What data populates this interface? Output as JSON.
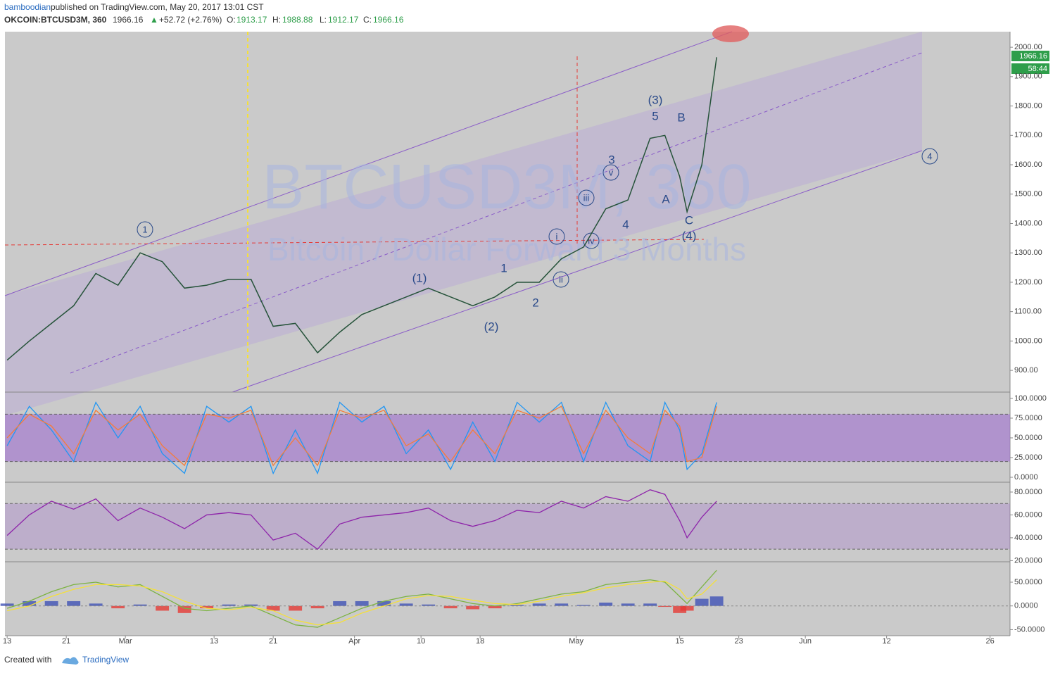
{
  "header": {
    "author": "bamboodian",
    "published": " published on TradingView.com, May 20, 2017 13:01 CST",
    "symbol": "OKCOIN:BTCUSD3M, 360",
    "last": "1966.16",
    "arrow": "▲",
    "change": "+52.72 (+2.76%)",
    "o_label": "O:",
    "open": "1913.17",
    "h_label": "H:",
    "high": "1988.88",
    "l_label": "L:",
    "low": "1912.17",
    "c_label": "C:",
    "close": "1966.16"
  },
  "price_tag": "1966.16",
  "countdown": "58:44",
  "watermark": {
    "symbol": "BTCUSD3M, 360",
    "description": "Bitcoin / Dollar Forward 3 Months"
  },
  "waves": [
    "1",
    "(1)",
    "(2)",
    "1",
    "2",
    "i",
    "ii",
    "iii",
    "iv",
    "v",
    "3",
    "4",
    "(3)",
    "5",
    "B",
    "A",
    "C",
    "(4)",
    "4"
  ],
  "footer": {
    "created": "Created with",
    "brand": "TradingView"
  },
  "chart_data": [
    {
      "type": "line",
      "xlim": [
        -0.3,
        135.7
      ],
      "xticks": [
        {
          "value": 0,
          "label": "13"
        },
        {
          "value": 8,
          "label": "21"
        },
        {
          "value": 16,
          "label": "Mar"
        },
        {
          "value": 28,
          "label": "13"
        },
        {
          "value": 36,
          "label": "21"
        },
        {
          "value": 47,
          "label": "Apr"
        },
        {
          "value": 56,
          "label": "10"
        },
        {
          "value": 64,
          "label": "18"
        },
        {
          "value": 77,
          "label": "May"
        },
        {
          "value": 91,
          "label": "15"
        },
        {
          "value": 99,
          "label": "23"
        },
        {
          "value": 108,
          "label": "Jun"
        },
        {
          "value": 119,
          "label": "12"
        },
        {
          "value": 133,
          "label": "26"
        }
      ],
      "ylim": [
        826,
        2053
      ],
      "yticks": [
        {
          "value": 900,
          "label": "900.00"
        },
        {
          "value": 1000,
          "label": "1000.00"
        },
        {
          "value": 1100,
          "label": "1100.00"
        },
        {
          "value": 1200,
          "label": "1200.00"
        },
        {
          "value": 1300,
          "label": "1300.00"
        },
        {
          "value": 1400,
          "label": "1400.00"
        },
        {
          "value": 1500,
          "label": "1500.00"
        },
        {
          "value": 1600,
          "label": "1600.00"
        },
        {
          "value": 1700,
          "label": "1700.00"
        },
        {
          "value": 1800,
          "label": "1800.00"
        },
        {
          "value": 1900,
          "label": "1900.00"
        },
        {
          "value": 2000,
          "label": "2000.00"
        }
      ],
      "x": [
        0,
        3,
        6,
        9,
        12,
        15,
        18,
        21,
        24,
        27,
        30,
        33,
        36,
        39,
        42,
        45,
        48,
        51,
        54,
        57,
        60,
        63,
        66,
        69,
        72,
        75,
        78,
        81,
        84,
        87,
        89,
        91,
        92,
        94,
        96
      ],
      "series": [
        {
          "color": "#26533a",
          "values": [
            935,
            1000,
            1060,
            1120,
            1230,
            1190,
            1300,
            1270,
            1180,
            1190,
            1210,
            1210,
            1050,
            1060,
            960,
            1030,
            1090,
            1120,
            1150,
            1180,
            1150,
            1120,
            1150,
            1200,
            1200,
            1280,
            1320,
            1450,
            1480,
            1690,
            1700,
            1560,
            1440,
            1600,
            1966
          ]
        }
      ]
    },
    {
      "type": "line",
      "xlim": [
        -0.3,
        135.7
      ],
      "ylim": [
        -6.25,
        108
      ],
      "bands": [
        20,
        80
      ],
      "yticks": [
        {
          "value": 0,
          "label": "0.0000"
        },
        {
          "value": 25,
          "label": "25.0000"
        },
        {
          "value": 50,
          "label": "50.0000"
        },
        {
          "value": 75,
          "label": "75.0000"
        },
        {
          "value": 100,
          "label": "100.0000"
        }
      ],
      "x": [
        0,
        3,
        6,
        9,
        12,
        15,
        18,
        21,
        24,
        27,
        30,
        33,
        36,
        39,
        42,
        45,
        48,
        51,
        54,
        57,
        60,
        63,
        66,
        69,
        72,
        75,
        78,
        81,
        84,
        87,
        89,
        91,
        92,
        94,
        96
      ],
      "series": [
        {
          "color": "#2196f3",
          "values": [
            40,
            90,
            60,
            20,
            95,
            50,
            90,
            30,
            5,
            90,
            70,
            90,
            5,
            60,
            5,
            95,
            70,
            90,
            30,
            60,
            10,
            70,
            20,
            95,
            70,
            95,
            20,
            95,
            40,
            20,
            95,
            60,
            10,
            30,
            95
          ]
        },
        {
          "color": "#f57c3a",
          "values": [
            50,
            80,
            65,
            30,
            85,
            60,
            80,
            40,
            15,
            80,
            75,
            85,
            15,
            50,
            15,
            85,
            75,
            85,
            40,
            55,
            20,
            60,
            30,
            85,
            75,
            90,
            30,
            85,
            50,
            30,
            85,
            65,
            20,
            25,
            90
          ]
        }
      ]
    },
    {
      "type": "line",
      "xlim": [
        -0.3,
        135.7
      ],
      "ylim": [
        19,
        88.6
      ],
      "bands": [
        30,
        70
      ],
      "yticks": [
        {
          "value": 20,
          "label": "20.0000"
        },
        {
          "value": 40,
          "label": "40.0000"
        },
        {
          "value": 60,
          "label": "60.0000"
        },
        {
          "value": 80,
          "label": "80.0000"
        }
      ],
      "x": [
        0,
        3,
        6,
        9,
        12,
        15,
        18,
        21,
        24,
        27,
        30,
        33,
        36,
        39,
        42,
        45,
        48,
        51,
        54,
        57,
        60,
        63,
        66,
        69,
        72,
        75,
        78,
        81,
        84,
        87,
        89,
        91,
        92,
        94,
        96
      ],
      "series": [
        {
          "color": "#8e24aa",
          "values": [
            42,
            60,
            72,
            65,
            74,
            55,
            66,
            58,
            48,
            60,
            62,
            60,
            38,
            44,
            30,
            52,
            58,
            60,
            62,
            66,
            55,
            50,
            55,
            64,
            62,
            72,
            66,
            76,
            72,
            82,
            78,
            55,
            40,
            58,
            72
          ]
        }
      ]
    },
    {
      "type": "macd",
      "xlim": [
        -0.3,
        135.7
      ],
      "ylim": [
        -62.7,
        93
      ],
      "yticks": [
        {
          "value": -50,
          "label": "-50.0000"
        },
        {
          "value": 0,
          "label": "0.0000"
        },
        {
          "value": 50,
          "label": "50.0000"
        }
      ],
      "x": [
        0,
        3,
        6,
        9,
        12,
        15,
        18,
        21,
        24,
        27,
        30,
        33,
        36,
        39,
        42,
        45,
        48,
        51,
        54,
        57,
        60,
        63,
        66,
        69,
        72,
        75,
        78,
        81,
        84,
        87,
        89,
        91,
        92,
        94,
        96
      ],
      "series": [
        {
          "color": "#7cb342",
          "values": [
            -5,
            10,
            30,
            45,
            50,
            40,
            45,
            20,
            -5,
            -10,
            -5,
            0,
            -20,
            -40,
            -45,
            -25,
            -5,
            10,
            20,
            25,
            15,
            5,
            0,
            5,
            15,
            25,
            30,
            45,
            50,
            55,
            50,
            20,
            5,
            40,
            75
          ]
        },
        {
          "color": "#f5e03a",
          "values": [
            -10,
            0,
            20,
            35,
            45,
            45,
            42,
            30,
            10,
            -5,
            -8,
            -3,
            -10,
            -30,
            -40,
            -35,
            -15,
            0,
            15,
            22,
            20,
            12,
            5,
            3,
            10,
            20,
            28,
            38,
            45,
            50,
            52,
            35,
            15,
            25,
            55
          ]
        }
      ],
      "histogram": [
        5,
        10,
        10,
        10,
        5,
        -5,
        3,
        -10,
        -15,
        -5,
        3,
        3,
        -10,
        -10,
        -5,
        10,
        10,
        10,
        5,
        3,
        -5,
        -7,
        -5,
        2,
        5,
        5,
        2,
        7,
        5,
        5,
        -2,
        -15,
        -10,
        15,
        20
      ],
      "hist_colors": [
        "#3f51b5",
        "#e53935"
      ]
    }
  ]
}
